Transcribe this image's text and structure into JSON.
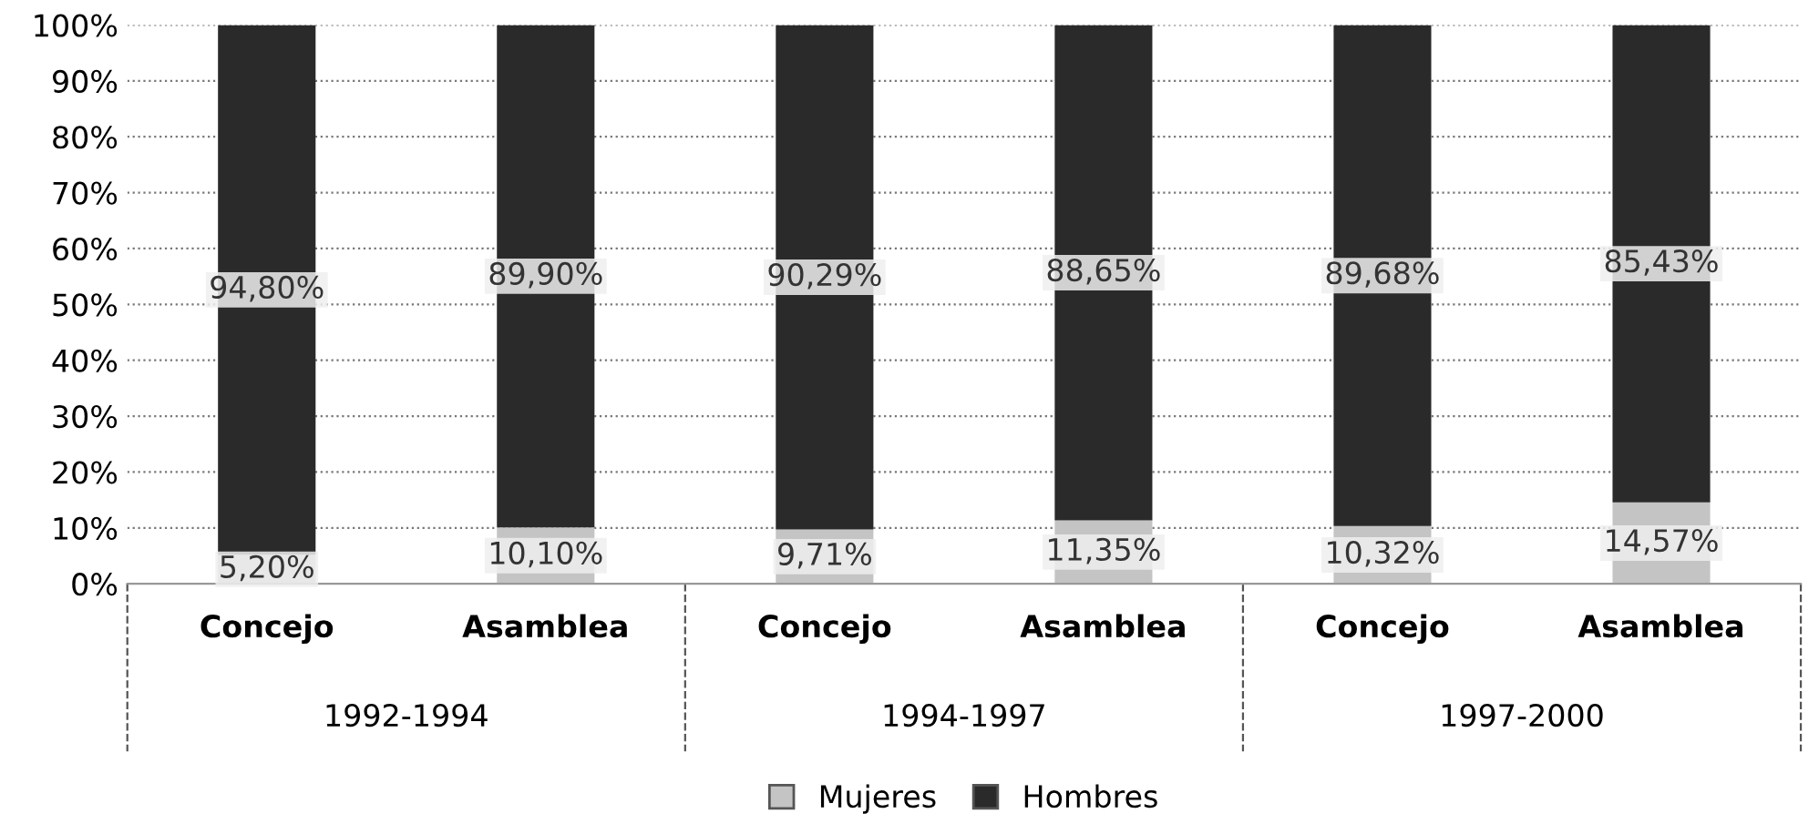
{
  "chart_data": {
    "type": "bar",
    "stacked": true,
    "categories": [
      "Concejo",
      "Asamblea",
      "Concejo",
      "Asamblea",
      "Concejo",
      "Asamblea"
    ],
    "annotations": [
      "1992-1994",
      "1994-1997",
      "1997-2000"
    ],
    "series": [
      {
        "name": "Mujeres",
        "color": "#c4c4c4",
        "values": [
          5.2,
          10.1,
          9.71,
          11.35,
          10.32,
          14.57
        ],
        "value_labels": [
          "5,20%",
          "10,10%",
          "9,71%",
          "11,35%",
          "10,32%",
          "14,57%"
        ]
      },
      {
        "name": "Hombres",
        "color": "#2a2a2a",
        "values": [
          94.8,
          89.9,
          90.29,
          88.65,
          89.68,
          85.43
        ],
        "value_labels": [
          "94,80%",
          "89,90%",
          "90,29%",
          "88,65%",
          "89,68%",
          "85,43%"
        ]
      }
    ],
    "ylim": [
      0,
      100
    ],
    "yticks": [
      {
        "value": 0,
        "label": "0%"
      },
      {
        "value": 10,
        "label": "10%"
      },
      {
        "value": 20,
        "label": "20%"
      },
      {
        "value": 30,
        "label": "30%"
      },
      {
        "value": 40,
        "label": "40%"
      },
      {
        "value": 50,
        "label": "50%"
      },
      {
        "value": 60,
        "label": "60%"
      },
      {
        "value": 70,
        "label": "70%"
      },
      {
        "value": 80,
        "label": "80%"
      },
      {
        "value": 90,
        "label": "90%"
      },
      {
        "value": 100,
        "label": "100%"
      }
    ],
    "grid": "y",
    "legend": "bottom"
  }
}
